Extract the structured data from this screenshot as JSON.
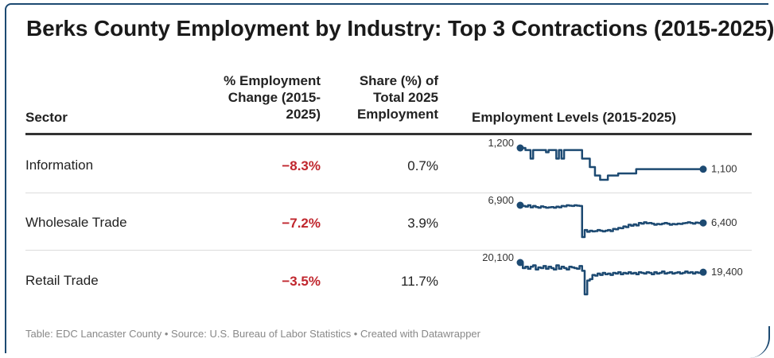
{
  "title": "Berks County Employment by Industry: Top 3 Contractions (2015-2025)",
  "columns": {
    "sector": "Sector",
    "change_line1": "% Employment",
    "change_line2": "Change (2015-",
    "change_line3": "2025)",
    "share_line1": "Share (%) of",
    "share_line2": "Total 2025",
    "share_line3": "Employment",
    "levels": "Employment Levels (2015-2025)"
  },
  "footer": "Table: EDC Lancaster County • Source: U.S. Bureau of Labor Statistics • Created with Datawrapper",
  "colors": {
    "line": "#1d4a72",
    "negative": "#c0262d",
    "frame": "#1d4a72"
  },
  "chart_data": {
    "type": "table",
    "title": "Berks County Employment by Industry: Top 3 Contractions (2015-2025)",
    "rows": [
      {
        "sector": "Information",
        "change": "−8.3%",
        "share": "0.7%",
        "start_label": "1,200",
        "end_label": "1,100",
        "series": [
          1200,
          1200,
          1190,
          1190,
          1150,
          1190,
          1190,
          1190,
          1190,
          1190,
          1180,
          1190,
          1190,
          1190,
          1150,
          1190,
          1150,
          1190,
          1190,
          1190,
          1190,
          1190,
          1190,
          1190,
          1150,
          1150,
          1150,
          1110,
          1110,
          1070,
          1070,
          1050,
          1050,
          1050,
          1070,
          1070,
          1070,
          1070,
          1080,
          1080,
          1080,
          1080,
          1080,
          1080,
          1080,
          1100,
          1100,
          1100,
          1100,
          1100,
          1100,
          1100,
          1100,
          1100,
          1100,
          1100,
          1100,
          1100,
          1100,
          1100,
          1100,
          1100,
          1100,
          1100,
          1100,
          1100,
          1100,
          1100,
          1100,
          1100,
          1100,
          1100
        ]
      },
      {
        "sector": "Wholesale Trade",
        "change": "−7.2%",
        "share": "3.9%",
        "start_label": "6,900",
        "end_label": "6,400",
        "series": [
          6900,
          6880,
          6860,
          6900,
          6840,
          6880,
          6850,
          6830,
          6870,
          6850,
          6830,
          6840,
          6850,
          6830,
          6860,
          6840,
          6880,
          6870,
          6900,
          6890,
          6880,
          6900,
          6890,
          6880,
          6000,
          6200,
          6150,
          6180,
          6160,
          6170,
          6200,
          6180,
          6160,
          6180,
          6200,
          6170,
          6230,
          6220,
          6260,
          6250,
          6300,
          6280,
          6350,
          6320,
          6360,
          6330,
          6400,
          6380,
          6420,
          6390,
          6400,
          6380,
          6350,
          6370,
          6360,
          6380,
          6400,
          6380,
          6350,
          6370,
          6360,
          6380,
          6370,
          6390,
          6400,
          6420,
          6400,
          6380,
          6410,
          6400,
          6380,
          6400
        ]
      },
      {
        "sector": "Retail Trade",
        "change": "−3.5%",
        "share": "11.7%",
        "start_label": "20,100",
        "end_label": "19,400",
        "series": [
          20100,
          19700,
          19800,
          19650,
          19800,
          19900,
          19600,
          19750,
          19700,
          19850,
          19650,
          19800,
          19700,
          19600,
          19900,
          19650,
          19800,
          19700,
          19600,
          19800,
          19750,
          19700,
          19650,
          19850,
          19500,
          17800,
          18800,
          18900,
          19200,
          19150,
          19300,
          19200,
          19350,
          19250,
          19300,
          19200,
          19350,
          19300,
          19400,
          19250,
          19350,
          19300,
          19400,
          19300,
          19350,
          19250,
          19400,
          19350,
          19300,
          19400,
          19350,
          19250,
          19400,
          19300,
          19350,
          19450,
          19300,
          19350,
          19400,
          19300,
          19350,
          19400,
          19300,
          19350,
          19450,
          19350,
          19400,
          19300,
          19400,
          19350,
          19400,
          19400
        ]
      }
    ]
  }
}
